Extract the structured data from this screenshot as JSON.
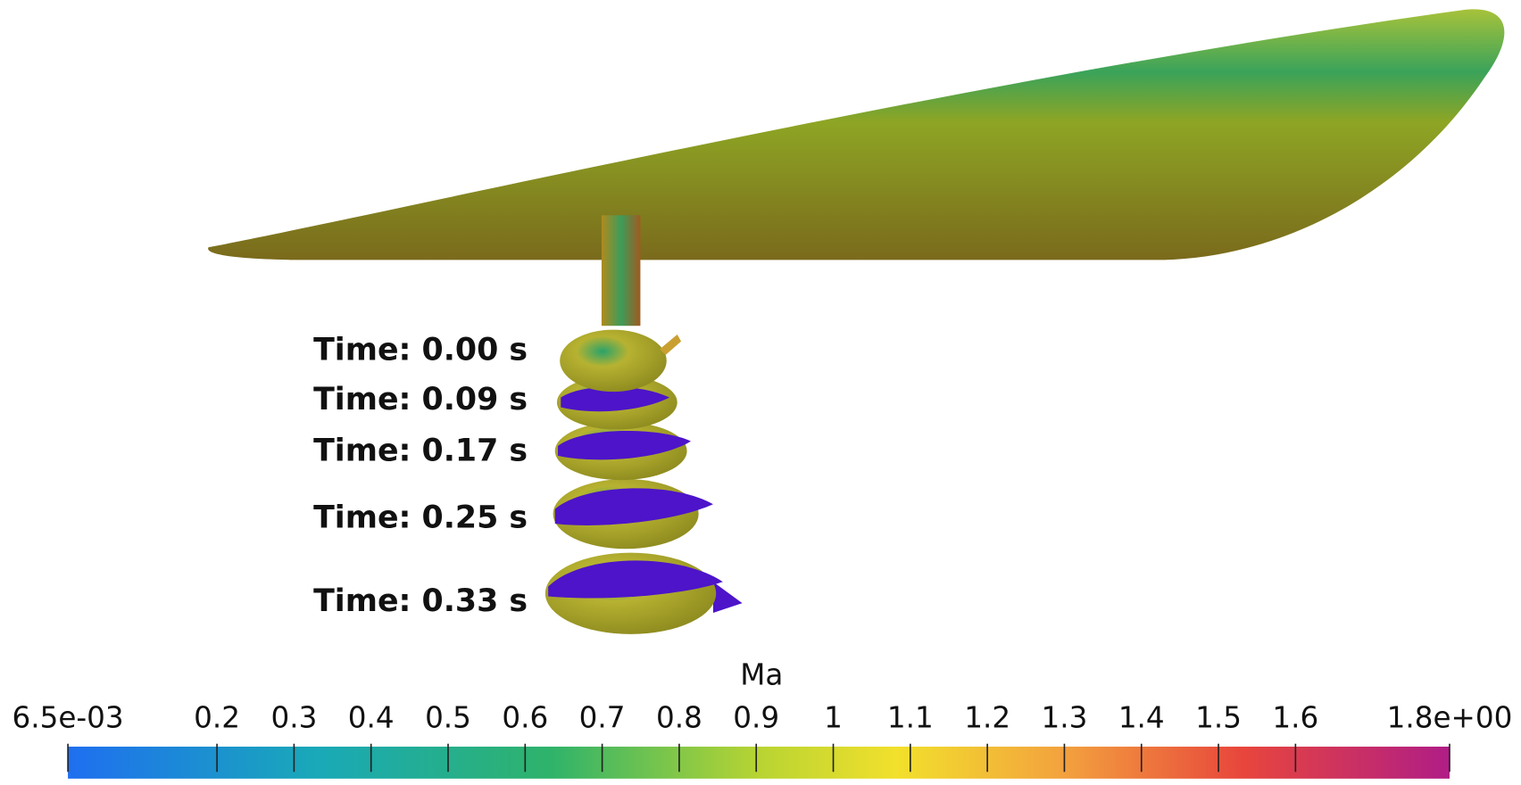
{
  "time_labels": [
    "Time: 0.00 s",
    "Time: 0.09 s",
    "Time: 0.17 s",
    "Time: 0.25 s",
    "Time: 0.33 s"
  ],
  "colorbar": {
    "title": "Ma",
    "lim": [
      0.0065,
      1.8
    ],
    "ticks": [
      {
        "value": 0.0065,
        "label": "6.5e-03"
      },
      0.2,
      0.3,
      0.4,
      0.5,
      0.6,
      0.7,
      0.8,
      0.9,
      1,
      1.1,
      1.2,
      1.3,
      1.4,
      1.5,
      1.6,
      {
        "value": 1.8,
        "label": "1.8e+00"
      }
    ]
  }
}
